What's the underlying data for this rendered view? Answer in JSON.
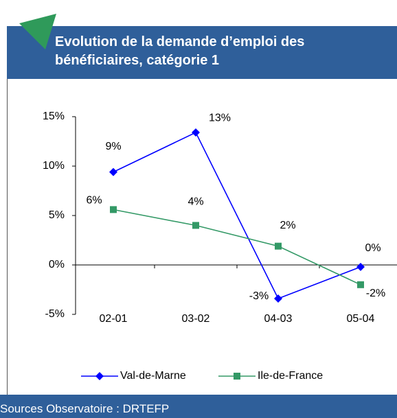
{
  "chart_data": {
    "type": "line",
    "title": "Evolution de la demande d’emploi des bénéficiaires, catégorie 1",
    "source": "Sources Observatoire : DRTEFP",
    "categories": [
      "02-01",
      "03-02",
      "04-03",
      "05-04"
    ],
    "series": [
      {
        "name": "Val-de-Marne",
        "color": "#0000ff",
        "marker": "diamond",
        "values": [
          9.4,
          13.4,
          -3.4,
          -0.2
        ],
        "value_labels": [
          "9%",
          "13%",
          "-3%",
          "0%"
        ]
      },
      {
        "name": "Ile-de-France",
        "color": "#339966",
        "marker": "square",
        "values": [
          5.6,
          4.0,
          1.9,
          -2.0
        ],
        "value_labels": [
          "6%",
          "4%",
          "2%",
          "-2%"
        ]
      }
    ],
    "ylim": [
      -5,
      15
    ],
    "yticks": [
      {
        "value": -5,
        "label": "-5%"
      },
      {
        "value": 0,
        "label": "0%"
      },
      {
        "value": 5,
        "label": "5%"
      },
      {
        "value": 10,
        "label": "10%"
      },
      {
        "value": 15,
        "label": "15%"
      }
    ],
    "grid": false,
    "legend": "bottom"
  }
}
